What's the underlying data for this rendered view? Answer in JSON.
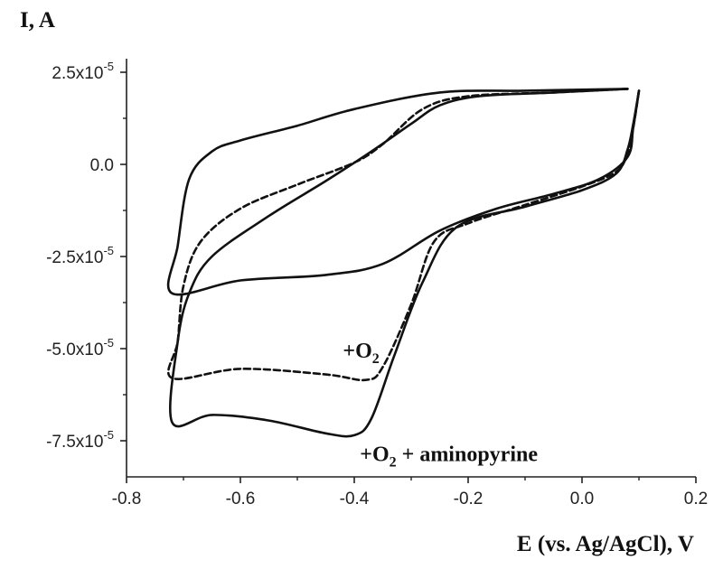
{
  "chart_data": {
    "type": "line",
    "title": "",
    "ylabel": "I, A",
    "xlabel": "E (vs. Ag/AgCl), V",
    "xlim": [
      -0.8,
      0.2
    ],
    "ylim": [
      -9e-05,
      3e-05
    ],
    "x_ticks": [
      -0.8,
      -0.6,
      -0.4,
      -0.2,
      0.0,
      0.2
    ],
    "x_tick_labels": [
      "-0.8",
      "-0.6",
      "-0.4",
      "-0.2",
      "0.0",
      "0.2"
    ],
    "y_ticks": [
      2.5e-05,
      0.0,
      -2.5e-05,
      -5e-05,
      -7.5e-05
    ],
    "y_tick_labels": [
      {
        "mantissa": "2.5x10",
        "exp": "-5"
      },
      {
        "mantissa": "0.0",
        "exp": ""
      },
      {
        "mantissa": "-2.5x10",
        "exp": "-5"
      },
      {
        "mantissa": "-5.0x10",
        "exp": "-5"
      },
      {
        "mantissa": "-7.5x10",
        "exp": "-5"
      }
    ],
    "grid": false,
    "series": [
      {
        "name": "",
        "style": "solid",
        "points": [
          [
            0.08,
            2.05e-05
          ],
          [
            -0.1,
            2e-05
          ],
          [
            -0.25,
            1.95e-05
          ],
          [
            -0.4,
            1.5e-05
          ],
          [
            -0.5,
            1.05e-05
          ],
          [
            -0.6,
            6.5e-06
          ],
          [
            -0.65,
            3.5e-06
          ],
          [
            -0.69,
            -4e-06
          ],
          [
            -0.71,
            -2.2e-05
          ],
          [
            -0.72,
            -3.5e-05
          ],
          [
            -0.6,
            -3.15e-05
          ],
          [
            -0.45,
            -3e-05
          ],
          [
            -0.35,
            -2.7e-05
          ],
          [
            -0.25,
            -1.8e-05
          ],
          [
            -0.15,
            -1.2e-05
          ],
          [
            -0.05,
            -8e-06
          ],
          [
            0.03,
            -4e-06
          ],
          [
            0.08,
            2e-06
          ],
          [
            0.09,
            1e-05
          ],
          [
            0.1,
            2e-05
          ]
        ]
      },
      {
        "name": "+O2",
        "style": "dashed",
        "points": [
          [
            0.08,
            2.05e-05
          ],
          [
            -0.05,
            1.95e-05
          ],
          [
            -0.2,
            1.85e-05
          ],
          [
            -0.28,
            1.5e-05
          ],
          [
            -0.35,
            5.5e-06
          ],
          [
            -0.4,
            5e-07
          ],
          [
            -0.5,
            -5.5e-06
          ],
          [
            -0.6,
            -1.2e-05
          ],
          [
            -0.67,
            -2.1e-05
          ],
          [
            -0.7,
            -3.3e-05
          ],
          [
            -0.71,
            -4.8e-05
          ],
          [
            -0.72,
            -5.8e-05
          ],
          [
            -0.6,
            -5.55e-05
          ],
          [
            -0.45,
            -5.7e-05
          ],
          [
            -0.38,
            -5.85e-05
          ],
          [
            -0.35,
            -5.5e-05
          ],
          [
            -0.3,
            -3.8e-05
          ],
          [
            -0.26,
            -2.1e-05
          ],
          [
            -0.2,
            -1.6e-05
          ],
          [
            -0.1,
            -1.1e-05
          ],
          [
            0.0,
            -6e-06
          ],
          [
            0.06,
            -2e-06
          ],
          [
            0.08,
            3e-06
          ],
          [
            0.09,
            1e-05
          ],
          [
            0.1,
            2e-05
          ]
        ]
      },
      {
        "name": "+O2 + aminopyrine",
        "style": "solid",
        "points": [
          [
            0.08,
            2.05e-05
          ],
          [
            -0.05,
            1.95e-05
          ],
          [
            -0.18,
            1.85e-05
          ],
          [
            -0.25,
            1.6e-05
          ],
          [
            -0.3,
            1.1e-05
          ],
          [
            -0.37,
            3.5e-06
          ],
          [
            -0.45,
            -4.5e-06
          ],
          [
            -0.55,
            -1.4e-05
          ],
          [
            -0.65,
            -2.5e-05
          ],
          [
            -0.69,
            -3.5e-05
          ],
          [
            -0.71,
            -4.8e-05
          ],
          [
            -0.72,
            -7e-05
          ],
          [
            -0.65,
            -6.8e-05
          ],
          [
            -0.55,
            -6.95e-05
          ],
          [
            -0.45,
            -7.3e-05
          ],
          [
            -0.4,
            -7.35e-05
          ],
          [
            -0.37,
            -6.9e-05
          ],
          [
            -0.33,
            -5.2e-05
          ],
          [
            -0.28,
            -3.2e-05
          ],
          [
            -0.22,
            -1.7e-05
          ],
          [
            -0.1,
            -1.15e-05
          ],
          [
            0.0,
            -7e-06
          ],
          [
            0.06,
            -2.5e-06
          ],
          [
            0.08,
            4e-06
          ],
          [
            0.09,
            1.1e-05
          ],
          [
            0.1,
            2e-05
          ]
        ]
      }
    ],
    "annotations": [
      {
        "text_main": "+O",
        "text_sub": "2",
        "text_after": "",
        "x": -0.42,
        "y": -5.25e-05
      },
      {
        "text_main": "+O",
        "text_sub": "2",
        "text_after": " + aminopyrine",
        "x": -0.39,
        "y": -8.05e-05
      }
    ]
  }
}
